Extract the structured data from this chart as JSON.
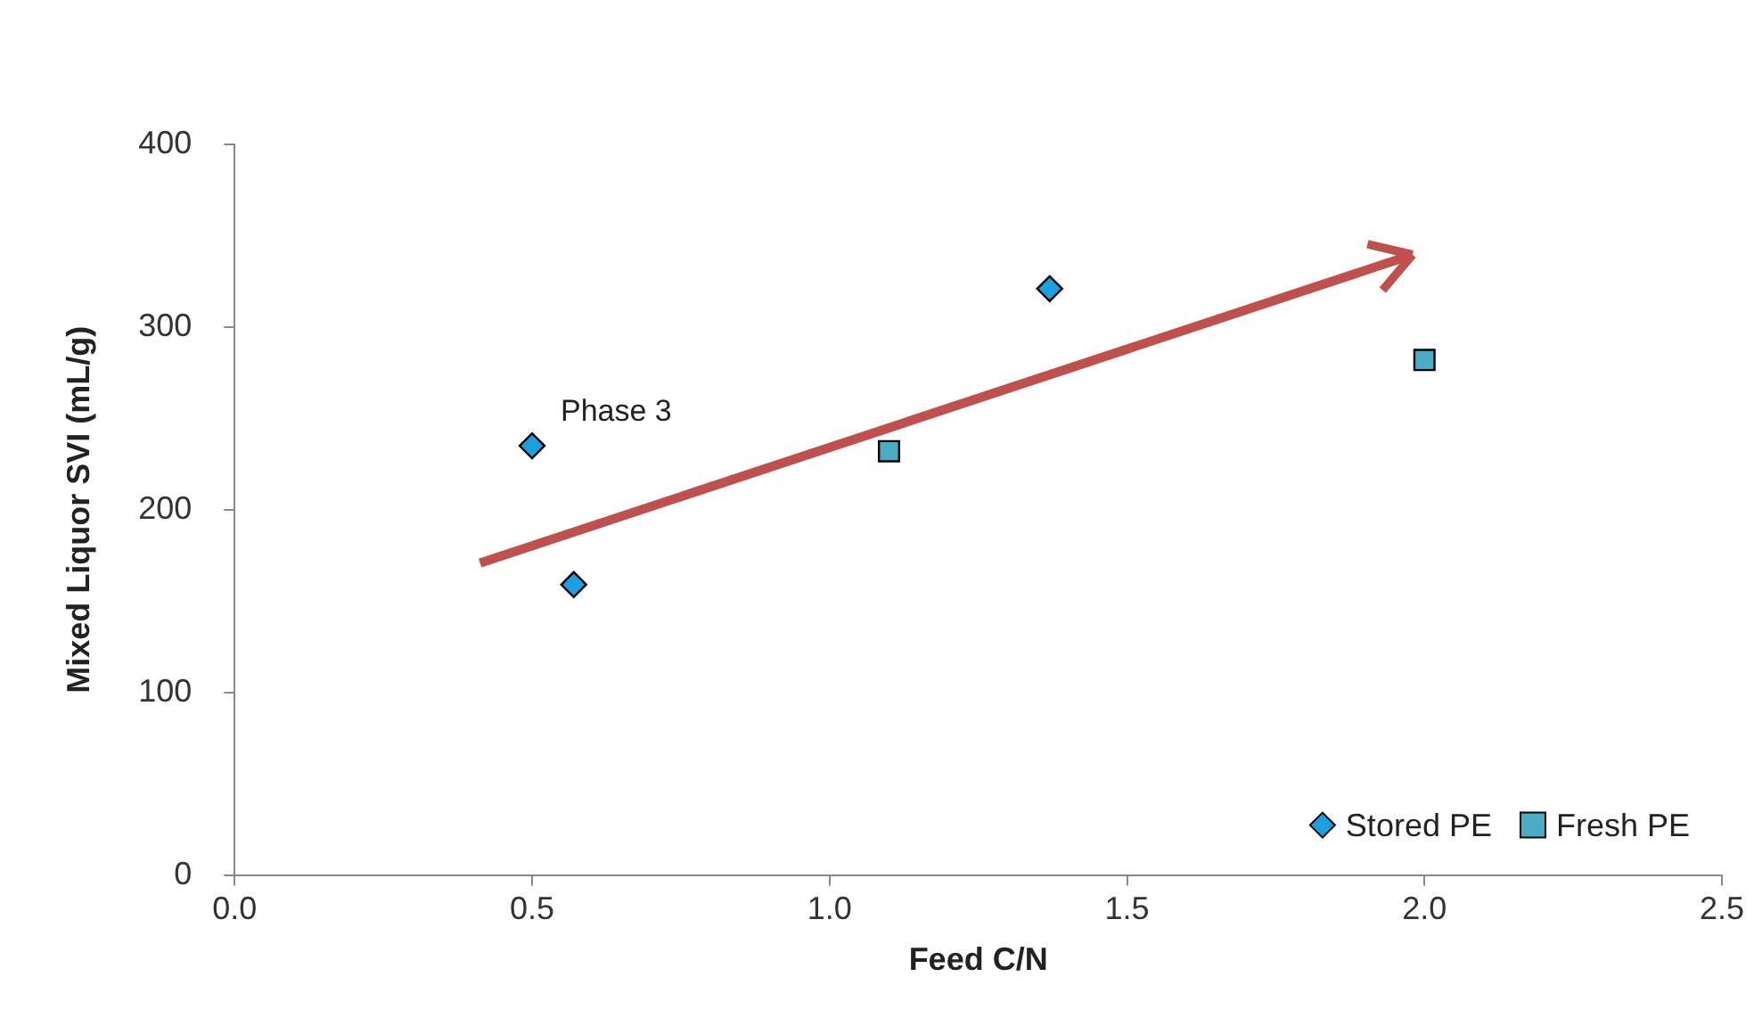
{
  "chart_data": {
    "type": "scatter",
    "xlabel": "Feed C/N",
    "ylabel": "Mixed Liquor SVI (mL/g)",
    "series": [
      {
        "name": "Stored PE",
        "color": "#1ba1e2",
        "marker": "diamond",
        "x": [
          0.5,
          0.57,
          1.37
        ],
        "values": [
          235,
          159,
          321
        ]
      },
      {
        "name": "Fresh PE",
        "color": "#4bacc6",
        "marker": "square",
        "x": [
          1.1,
          2.0
        ],
        "values": [
          232,
          282
        ]
      }
    ],
    "annotations": [
      {
        "text": "Phase 3",
        "x": 0.5,
        "y": 235
      }
    ],
    "xlim": [
      0,
      2.5
    ],
    "xticks": [
      {
        "value": 0,
        "label": "0.0"
      },
      {
        "value": 0.5,
        "label": "0.5"
      },
      {
        "value": 1,
        "label": "1.0"
      },
      {
        "value": 1.5,
        "label": "1.5"
      },
      {
        "value": 2,
        "label": "2.0"
      },
      {
        "value": 2.5,
        "label": "2.5"
      }
    ],
    "ylim": [
      0,
      400
    ],
    "yticks": [
      0,
      100,
      200,
      300,
      400
    ],
    "legend": "bottom right"
  }
}
